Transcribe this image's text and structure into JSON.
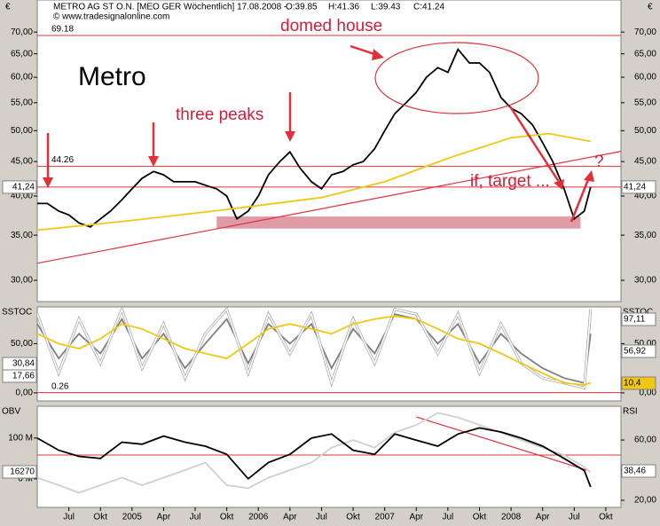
{
  "header": {
    "title": "METRO AG ST O.N. [MEO GER  Wöchentlich] 17.08.2008 -",
    "ohlc": [
      "O:39.85",
      "H:41.36",
      "L:39.43",
      "C:41.24"
    ],
    "source": "© www.tradesignalonline.com",
    "currency": "€"
  },
  "chart_data": [
    {
      "type": "line",
      "title": "Metro",
      "log_scale": true,
      "xlim": [
        2004.25,
        2008.87
      ],
      "xticks": [
        {
          "value": 2004.5,
          "label": "Jul"
        },
        {
          "value": 2004.75,
          "label": "Okt"
        },
        2005,
        {
          "value": 2005.25,
          "label": "Apr"
        },
        {
          "value": 2005.5,
          "label": "Jul"
        },
        {
          "value": 2005.75,
          "label": "Okt"
        },
        2006,
        {
          "value": 2006.25,
          "label": "Apr"
        },
        {
          "value": 2006.5,
          "label": "Jul"
        },
        {
          "value": 2006.75,
          "label": "Okt"
        },
        2007,
        {
          "value": 2007.25,
          "label": "Apr"
        },
        {
          "value": 2007.5,
          "label": "Jul"
        },
        {
          "value": 2007.75,
          "label": "Okt"
        },
        2008,
        {
          "value": 2008.25,
          "label": "Apr"
        },
        {
          "value": 2008.5,
          "label": "Jul"
        },
        {
          "value": 2008.75,
          "label": "Okt"
        }
      ],
      "ylim": [
        27.9,
        78.1
      ],
      "yticks": [
        {
          "value": 30,
          "label": "30,00"
        },
        {
          "value": 35,
          "label": "35,00"
        },
        {
          "value": 40,
          "label": "40,00"
        },
        {
          "value": 45,
          "label": "45,00"
        },
        {
          "value": 50,
          "label": "50,00"
        },
        {
          "value": 55,
          "label": "55,00"
        },
        {
          "value": 60,
          "label": "60,00"
        },
        {
          "value": 65,
          "label": "65,00"
        },
        {
          "value": 70,
          "label": "70,00"
        }
      ],
      "x": [
        2004.25,
        2004.33,
        2004.42,
        2004.5,
        2004.58,
        2004.67,
        2004.75,
        2004.83,
        2004.92,
        2005.0,
        2005.08,
        2005.17,
        2005.25,
        2005.33,
        2005.42,
        2005.5,
        2005.58,
        2005.67,
        2005.75,
        2005.83,
        2005.92,
        2006.0,
        2006.08,
        2006.17,
        2006.25,
        2006.33,
        2006.42,
        2006.5,
        2006.58,
        2006.67,
        2006.75,
        2006.83,
        2006.92,
        2007.0,
        2007.08,
        2007.17,
        2007.25,
        2007.33,
        2007.42,
        2007.5,
        2007.58,
        2007.67,
        2007.75,
        2007.83,
        2007.92,
        2008.0,
        2008.08,
        2008.17,
        2008.25,
        2008.33,
        2008.42,
        2008.5,
        2008.58,
        2008.63
      ],
      "series": [
        {
          "color": "#000000",
          "values": [
            39,
            39,
            38,
            37.5,
            36.5,
            36,
            37,
            38,
            39.5,
            41,
            42.5,
            43.5,
            43,
            42,
            42,
            42,
            41.5,
            41,
            40,
            37,
            38,
            40,
            43,
            45,
            46.5,
            44,
            42,
            41,
            43,
            43.5,
            44.5,
            45,
            47,
            50,
            53,
            55,
            57,
            60,
            62,
            61,
            66,
            63,
            63,
            61,
            56,
            54,
            53,
            51,
            48,
            45,
            41,
            37,
            38,
            41.24
          ]
        },
        {
          "color": "#f0c814",
          "x": [
            2004.25,
            2005.0,
            2005.75,
            2006.5,
            2007.0,
            2007.5,
            2008.0,
            2008.3,
            2008.63
          ],
          "values": [
            35.6,
            36.8,
            38.2,
            39.8,
            42,
            45.5,
            48.8,
            49.5,
            48.2
          ]
        }
      ],
      "hlines": [
        69.18,
        44.26,
        {
          "value": 41.24,
          "label": "41,24"
        }
      ],
      "trendline": {
        "color": "#e0303a",
        "x": [
          2004.25,
          2008.87
        ],
        "values": [
          31.8,
          46.6
        ]
      },
      "zone": {
        "color": "#d98a96",
        "x": [
          2005.67,
          2008.55
        ],
        "values": [
          35.8,
          37.3
        ]
      },
      "annotations": [
        "three peaks",
        "domed house",
        "if, target ...",
        "?"
      ]
    },
    {
      "type": "line",
      "title": "SSTOC",
      "ylim": [
        -8.2,
        87.3
      ],
      "yticks": [
        {
          "value": 0,
          "label": "0,00"
        },
        {
          "value": 50,
          "label": "50,00"
        }
      ],
      "x": [
        2004.25,
        2004.42,
        2004.58,
        2004.75,
        2004.92,
        2005.08,
        2005.25,
        2005.42,
        2005.58,
        2005.75,
        2005.92,
        2006.08,
        2006.25,
        2006.42,
        2006.58,
        2006.75,
        2006.92,
        2007.08,
        2007.25,
        2007.42,
        2007.58,
        2007.75,
        2007.92,
        2008.08,
        2008.25,
        2008.42,
        2008.58,
        2008.63
      ],
      "series": [
        {
          "color": "#808080",
          "values": [
            70,
            35,
            60,
            40,
            75,
            35,
            60,
            25,
            50,
            75,
            30,
            70,
            50,
            70,
            25,
            65,
            40,
            80,
            75,
            50,
            70,
            30,
            60,
            40,
            25,
            15,
            10,
            60
          ]
        },
        {
          "color": "#ffffff",
          "values": [
            80,
            20,
            75,
            30,
            85,
            25,
            70,
            15,
            60,
            85,
            20,
            80,
            40,
            80,
            10,
            75,
            30,
            85,
            80,
            40,
            80,
            20,
            70,
            30,
            15,
            10,
            5,
            85
          ]
        },
        {
          "color": "#f0c814",
          "values": [
            60,
            50,
            45,
            55,
            70,
            65,
            55,
            45,
            40,
            35,
            50,
            65,
            70,
            65,
            60,
            70,
            75,
            78,
            75,
            65,
            55,
            50,
            40,
            30,
            20,
            10,
            8,
            10.4
          ]
        }
      ],
      "hlines": [
        0.26
      ],
      "left_readouts": [
        "30,84",
        "17,66"
      ],
      "right_readouts": [
        "97,11",
        "56,92",
        "10,4"
      ]
    },
    {
      "type": "line",
      "title": "OBV",
      "y2_title": "RSI",
      "ylim": [
        -70,
        178
      ],
      "yticks": [
        {
          "value": 0,
          "label": "0 M"
        },
        {
          "value": 100,
          "label": "100 M"
        }
      ],
      "y2lim": [
        15.3,
        82.4
      ],
      "y2ticks": [
        {
          "value": 20,
          "label": "20,00"
        },
        {
          "value": 40,
          "label": "40,00"
        },
        {
          "value": 60,
          "label": "60,00"
        }
      ],
      "x": [
        2004.25,
        2004.42,
        2004.58,
        2004.75,
        2004.92,
        2005.08,
        2005.25,
        2005.42,
        2005.58,
        2005.75,
        2005.92,
        2006.08,
        2006.25,
        2006.42,
        2006.58,
        2006.75,
        2006.92,
        2007.08,
        2007.25,
        2007.42,
        2007.58,
        2007.75,
        2007.92,
        2008.08,
        2008.25,
        2008.42,
        2008.58,
        2008.63
      ],
      "series": [
        {
          "color": "#d0d0d0",
          "axis": "y2",
          "values": [
            35,
            30,
            25,
            30,
            35,
            30,
            35,
            40,
            45,
            30,
            28,
            35,
            40,
            45,
            55,
            60,
            55,
            65,
            70,
            78,
            75,
            70,
            65,
            60,
            55,
            50,
            42,
            38.46
          ]
        },
        {
          "color": "#000000",
          "values": [
            100,
            70,
            55,
            50,
            90,
            85,
            105,
            90,
            80,
            60,
            0,
            40,
            60,
            100,
            110,
            70,
            60,
            110,
            95,
            80,
            110,
            125,
            115,
            100,
            80,
            50,
            20,
            -20
          ]
        }
      ],
      "hlines": [
        {
          "value": 50,
          "axis": "y2"
        }
      ],
      "trendline": {
        "color": "#e0303a",
        "axis": "y2",
        "x": [
          2007.25,
          2008.6
        ],
        "values": [
          75.3,
          40
        ]
      },
      "left_readouts": [
        "16270"
      ],
      "right_readouts": [
        "38,46"
      ]
    }
  ]
}
